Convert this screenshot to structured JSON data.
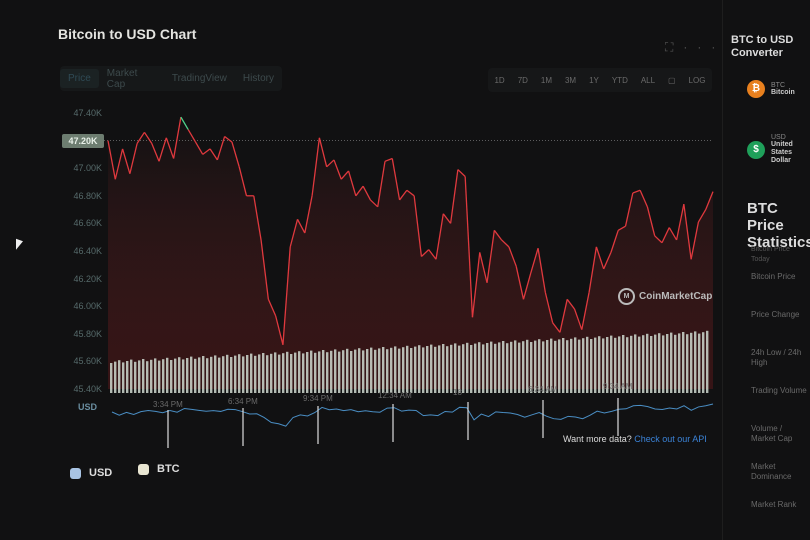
{
  "title": "Bitcoin to USD Chart",
  "tabs": [
    {
      "label": "Price",
      "active": true
    },
    {
      "label": "Market Cap"
    },
    {
      "label": "TradingView"
    },
    {
      "label": "History"
    }
  ],
  "ranges": [
    "1D",
    "7D",
    "1M",
    "3M",
    "1Y",
    "YTD",
    "ALL",
    "calendar-icon",
    "LOG"
  ],
  "current_price_label": "47.20K",
  "currency_label": "USD",
  "watermark": "CoinMarketCap",
  "api_prompt": "Want more data?",
  "api_link": "Check out our API",
  "legend": [
    {
      "label": "USD",
      "color": "#a9c4e4"
    },
    {
      "label": "BTC",
      "color": "#e9e6d2"
    }
  ],
  "colors": {
    "up": "#4fd18b",
    "down": "#e0393e",
    "navigator": "#4a8ec4",
    "volume": "#cfd8cf"
  },
  "chart_data": {
    "type": "line",
    "title": "Bitcoin to USD Chart",
    "ylabel": "USD",
    "ylim": [
      45.4,
      47.5
    ],
    "yticks": [
      "47.40K",
      "47.20K",
      "47.00K",
      "46.80K",
      "46.60K",
      "46.40K",
      "46.20K",
      "46.00K",
      "45.80K",
      "45.60K",
      "45.40K"
    ],
    "ytick_values": [
      47.4,
      47.2,
      47.0,
      46.8,
      46.6,
      46.4,
      46.2,
      46.0,
      45.8,
      45.6,
      45.4
    ],
    "reference_value": 47.2,
    "xticks": [
      "3:34 PM",
      "6:34 PM",
      "9:34 PM",
      "12:34 AM",
      "18",
      "6:34 AM",
      "9:34 AM"
    ],
    "grid": false,
    "legend_placement": "bottom-left",
    "series": [
      {
        "values": [
          47.2,
          46.92,
          47.14,
          46.96,
          47.18,
          47.26,
          47.18,
          47.05,
          47.22,
          47.07,
          47.37,
          47.28,
          47.19,
          47.1,
          47.14,
          47.06,
          47.23,
          47.19,
          47.01,
          46.8,
          46.8,
          46.48,
          46.05,
          45.93,
          45.72,
          46.43,
          46.63,
          46.53,
          46.8,
          47.22,
          47.01,
          47.06,
          46.92,
          46.98,
          46.8,
          46.87,
          46.77,
          46.72,
          47.05,
          47.07,
          46.77,
          46.84,
          46.8,
          46.36,
          46.41,
          46.34,
          46.67,
          46.6,
          46.99,
          46.94,
          45.92,
          46.39,
          46.17,
          46.55,
          46.48,
          46.43,
          46.29,
          46.05,
          46.24,
          46.42,
          46.1,
          45.88,
          45.81,
          46.05,
          45.98,
          45.83,
          46.1,
          46.43,
          46.27,
          46.39,
          46.55,
          46.58,
          46.82,
          46.84,
          46.72,
          46.51,
          46.46,
          46.57,
          46.48,
          46.74,
          46.34,
          46.61,
          46.7,
          46.83
        ]
      }
    ]
  },
  "panel": {
    "title": "BTC to USD Converter",
    "coins": [
      {
        "symbol": "BTC",
        "name": "Bitcoin",
        "glyph": "₿",
        "color": "#e8801e"
      },
      {
        "symbol": "USD",
        "name": "United States Dollar",
        "glyph": "$",
        "color": "#1fa05a"
      }
    ],
    "stats_title": "BTC Price Statistics",
    "stats_subtitle": "Bitcoin Price Today",
    "rows": [
      "Bitcoin Price",
      "Price Change",
      "24h Low / 24h High",
      "Trading Volume",
      "Volume / Market Cap",
      "Market Dominance",
      "Market Rank"
    ]
  }
}
